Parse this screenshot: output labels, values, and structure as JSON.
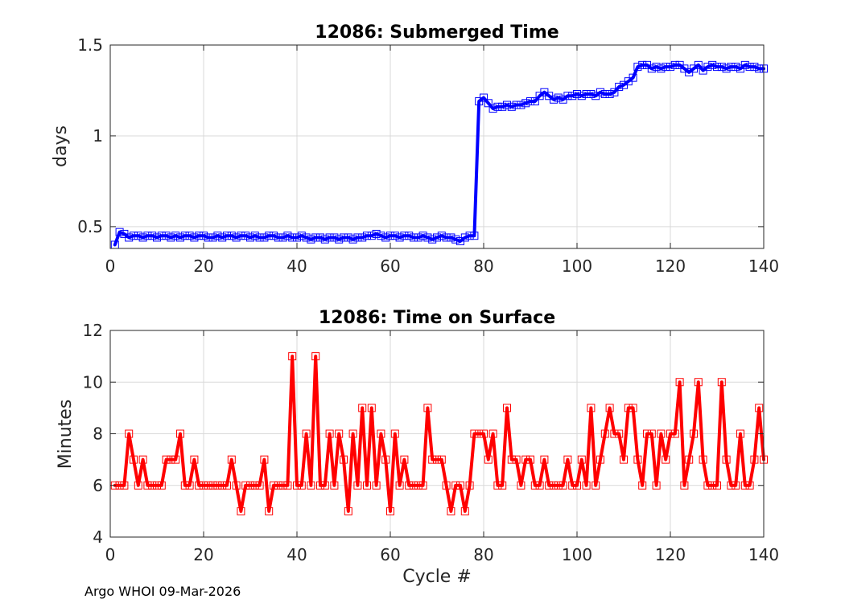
{
  "footer": "Argo WHOI 09-Mar-2026",
  "chart_data": [
    {
      "type": "line",
      "title": "12086: Submerged Time",
      "xlabel": "",
      "ylabel": "days",
      "xlim": [
        0,
        140
      ],
      "ylim": [
        0.38,
        1.5
      ],
      "xticks": [
        0,
        20,
        40,
        60,
        80,
        100,
        120,
        140
      ],
      "yticks": [
        0.5,
        1,
        1.5
      ],
      "ytick_labels": [
        "0.5",
        "1",
        "1.5"
      ],
      "grid": true,
      "color": "#0000ff",
      "marker": "square",
      "series": [
        {
          "name": "Submerged Time",
          "x": [
            1,
            2,
            3,
            4,
            5,
            6,
            7,
            8,
            9,
            10,
            11,
            12,
            13,
            14,
            15,
            16,
            17,
            18,
            19,
            20,
            21,
            22,
            23,
            24,
            25,
            26,
            27,
            28,
            29,
            30,
            31,
            32,
            33,
            34,
            35,
            36,
            37,
            38,
            39,
            40,
            41,
            42,
            43,
            44,
            45,
            46,
            47,
            48,
            49,
            50,
            51,
            52,
            53,
            54,
            55,
            56,
            57,
            58,
            59,
            60,
            61,
            62,
            63,
            64,
            65,
            66,
            67,
            68,
            69,
            70,
            71,
            72,
            73,
            74,
            75,
            76,
            77,
            78,
            79,
            80,
            81,
            82,
            83,
            84,
            85,
            86,
            87,
            88,
            89,
            90,
            91,
            92,
            93,
            94,
            95,
            96,
            97,
            98,
            99,
            100,
            101,
            102,
            103,
            104,
            105,
            106,
            107,
            108,
            109,
            110,
            111,
            112,
            113,
            114,
            115,
            116,
            117,
            118,
            119,
            120,
            121,
            122,
            123,
            124,
            125,
            126,
            127,
            128,
            129,
            130,
            131,
            132,
            133,
            134,
            135,
            136,
            137,
            138,
            139,
            140
          ],
          "y": [
            0.4,
            0.47,
            0.46,
            0.44,
            0.45,
            0.45,
            0.44,
            0.45,
            0.45,
            0.44,
            0.45,
            0.45,
            0.44,
            0.45,
            0.44,
            0.45,
            0.45,
            0.44,
            0.45,
            0.45,
            0.44,
            0.44,
            0.45,
            0.44,
            0.45,
            0.45,
            0.44,
            0.45,
            0.45,
            0.44,
            0.45,
            0.44,
            0.44,
            0.45,
            0.45,
            0.44,
            0.44,
            0.45,
            0.44,
            0.44,
            0.45,
            0.44,
            0.43,
            0.44,
            0.44,
            0.43,
            0.44,
            0.44,
            0.43,
            0.44,
            0.44,
            0.43,
            0.44,
            0.44,
            0.45,
            0.45,
            0.46,
            0.45,
            0.44,
            0.45,
            0.45,
            0.44,
            0.45,
            0.45,
            0.44,
            0.44,
            0.45,
            0.44,
            0.43,
            0.44,
            0.45,
            0.44,
            0.44,
            0.43,
            0.42,
            0.44,
            0.45,
            0.45,
            1.19,
            1.21,
            1.18,
            1.15,
            1.16,
            1.16,
            1.17,
            1.16,
            1.17,
            1.17,
            1.18,
            1.19,
            1.19,
            1.22,
            1.24,
            1.22,
            1.2,
            1.21,
            1.2,
            1.22,
            1.22,
            1.23,
            1.22,
            1.23,
            1.23,
            1.22,
            1.24,
            1.23,
            1.23,
            1.24,
            1.27,
            1.28,
            1.3,
            1.32,
            1.38,
            1.39,
            1.39,
            1.37,
            1.38,
            1.37,
            1.38,
            1.38,
            1.39,
            1.39,
            1.37,
            1.35,
            1.37,
            1.39,
            1.36,
            1.38,
            1.39,
            1.38,
            1.38,
            1.37,
            1.38,
            1.38,
            1.37,
            1.39,
            1.38,
            1.38,
            1.37,
            1.37
          ]
        }
      ]
    },
    {
      "type": "line",
      "title": "12086: Time on Surface",
      "xlabel": "Cycle #",
      "ylabel": "Minutes",
      "xlim": [
        0,
        140
      ],
      "ylim": [
        4,
        12
      ],
      "xticks": [
        0,
        20,
        40,
        60,
        80,
        100,
        120,
        140
      ],
      "yticks": [
        4,
        6,
        8,
        10,
        12
      ],
      "ytick_labels": [
        "4",
        "6",
        "8",
        "10",
        "12"
      ],
      "grid": true,
      "color": "#ff0000",
      "marker": "square",
      "series": [
        {
          "name": "Time on Surface",
          "x": [
            1,
            2,
            3,
            4,
            5,
            6,
            7,
            8,
            9,
            10,
            11,
            12,
            13,
            14,
            15,
            16,
            17,
            18,
            19,
            20,
            21,
            22,
            23,
            24,
            25,
            26,
            27,
            28,
            29,
            30,
            31,
            32,
            33,
            34,
            35,
            36,
            37,
            38,
            39,
            40,
            41,
            42,
            43,
            44,
            45,
            46,
            47,
            48,
            49,
            50,
            51,
            52,
            53,
            54,
            55,
            56,
            57,
            58,
            59,
            60,
            61,
            62,
            63,
            64,
            65,
            66,
            67,
            68,
            69,
            70,
            71,
            72,
            73,
            74,
            75,
            76,
            77,
            78,
            79,
            80,
            81,
            82,
            83,
            84,
            85,
            86,
            87,
            88,
            89,
            90,
            91,
            92,
            93,
            94,
            95,
            96,
            97,
            98,
            99,
            100,
            101,
            102,
            103,
            104,
            105,
            106,
            107,
            108,
            109,
            110,
            111,
            112,
            113,
            114,
            115,
            116,
            117,
            118,
            119,
            120,
            121,
            122,
            123,
            124,
            125,
            126,
            127,
            128,
            129,
            130,
            131,
            132,
            133,
            134,
            135,
            136,
            137,
            138,
            139,
            140
          ],
          "y": [
            6,
            6,
            6,
            8,
            7,
            6,
            7,
            6,
            6,
            6,
            6,
            7,
            7,
            7,
            8,
            6,
            6,
            7,
            6,
            6,
            6,
            6,
            6,
            6,
            6,
            7,
            6,
            5,
            6,
            6,
            6,
            6,
            7,
            5,
            6,
            6,
            6,
            6,
            11,
            6,
            6,
            8,
            6,
            11,
            6,
            6,
            8,
            6,
            8,
            7,
            5,
            8,
            6,
            9,
            6,
            9,
            6,
            8,
            7,
            5,
            8,
            6,
            7,
            6,
            6,
            6,
            6,
            9,
            7,
            7,
            7,
            6,
            5,
            6,
            6,
            5,
            6,
            8,
            8,
            8,
            7,
            8,
            6,
            6,
            9,
            7,
            7,
            6,
            7,
            7,
            6,
            6,
            7,
            6,
            6,
            6,
            6,
            7,
            6,
            6,
            7,
            6,
            9,
            6,
            7,
            8,
            9,
            8,
            8,
            7,
            9,
            9,
            7,
            6,
            8,
            8,
            6,
            8,
            7,
            8,
            8,
            10,
            6,
            7,
            8,
            10,
            7,
            6,
            6,
            6,
            10,
            7,
            6,
            6,
            8,
            6,
            6,
            7,
            9,
            7
          ]
        }
      ]
    }
  ]
}
